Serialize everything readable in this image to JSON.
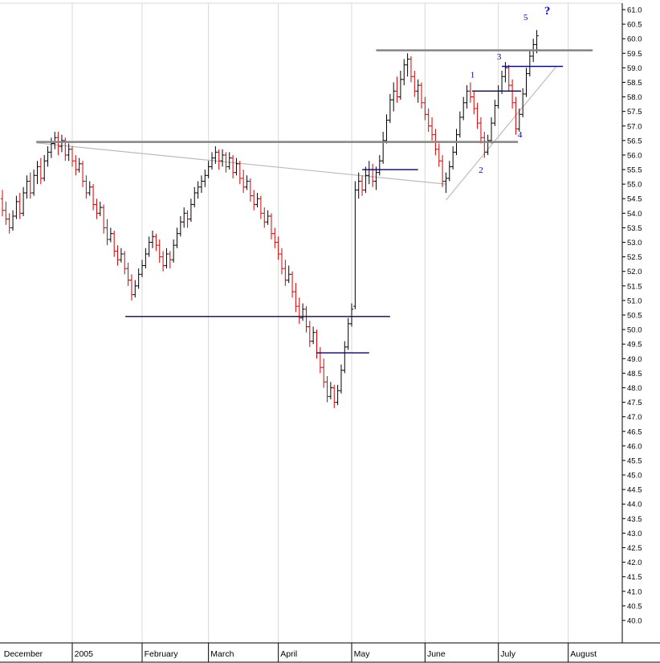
{
  "chart_data": {
    "type": "ohlc-bar",
    "title": "",
    "description": "Daily OHLC price bars, December 2004 through mid-July 2005, with Elliott wave count labels 1-5 and a question mark, gray horizontal resistance lines, converging gray trendlines and navy support/resistance segments",
    "colors": {
      "up": "#000000",
      "down": "#d40000",
      "heavy_line": "#858585",
      "trendline": "#bcbcbc",
      "navy_line": "#00007f",
      "wave_label": "#0000bb",
      "question_mark": "#0000dd",
      "gridline": "#d8d8d8",
      "axis": "#000000"
    },
    "x_axis": {
      "months": [
        {
          "label": "December",
          "gridline_bar": null,
          "label_bar": 0.4
        },
        {
          "label": "2005",
          "gridline_bar": 20,
          "label_bar": 20.6
        },
        {
          "label": "February",
          "gridline_bar": 40,
          "label_bar": 40.6
        },
        {
          "label": "March",
          "gridline_bar": 59,
          "label_bar": 59.6
        },
        {
          "label": "April",
          "gridline_bar": 79,
          "label_bar": 79.6
        },
        {
          "label": "May",
          "gridline_bar": 100,
          "label_bar": 100.6
        },
        {
          "label": "June",
          "gridline_bar": 121,
          "label_bar": 121.6
        },
        {
          "label": "July",
          "gridline_bar": 142,
          "label_bar": 142.6
        },
        {
          "label": "August",
          "gridline_bar": 162,
          "label_bar": 162.6
        }
      ]
    },
    "y_axis": {
      "max": 61.0,
      "min": 40.0,
      "step": 0.5,
      "tick_labels": [
        "61.0",
        "60.5",
        "60.0",
        "59.5",
        "59.0",
        "58.5",
        "58.0",
        "57.5",
        "57.0",
        "56.5",
        "56.0",
        "55.5",
        "55.0",
        "54.5",
        "54.0",
        "53.5",
        "53.0",
        "52.5",
        "52.0",
        "51.5",
        "51.0",
        "50.5",
        "50.0",
        "49.5",
        "49.0",
        "48.5",
        "48.0",
        "47.5",
        "47.0",
        "46.5",
        "46.0",
        "45.5",
        "45.0",
        "44.5",
        "44.0",
        "43.5",
        "43.0",
        "42.5",
        "42.0",
        "41.5",
        "41.0",
        "40.5",
        "40.0"
      ]
    },
    "bars": [
      [
        54.5,
        54.8,
        53.9,
        54.1
      ],
      [
        54.1,
        54.4,
        53.6,
        53.8
      ],
      [
        53.8,
        54.0,
        53.3,
        53.5
      ],
      [
        53.5,
        54.1,
        53.4,
        53.9
      ],
      [
        53.9,
        54.6,
        53.8,
        54.4
      ],
      [
        54.4,
        54.7,
        53.8,
        54.0
      ],
      [
        54.0,
        54.9,
        53.9,
        54.7
      ],
      [
        54.7,
        55.3,
        54.5,
        55.1
      ],
      [
        55.1,
        55.4,
        54.5,
        54.7
      ],
      [
        54.7,
        55.5,
        54.6,
        55.3
      ],
      [
        55.3,
        55.8,
        55.0,
        55.6
      ],
      [
        55.6,
        55.9,
        55.0,
        55.2
      ],
      [
        55.2,
        56.0,
        55.1,
        55.8
      ],
      [
        55.8,
        56.3,
        55.6,
        56.1
      ],
      [
        56.1,
        56.6,
        55.9,
        56.4
      ],
      [
        56.4,
        56.8,
        56.2,
        56.6
      ],
      [
        56.6,
        56.8,
        56.0,
        56.3
      ],
      [
        56.3,
        56.7,
        56.1,
        56.5
      ],
      [
        56.5,
        56.6,
        55.8,
        56.0
      ],
      [
        56.0,
        56.4,
        55.8,
        56.2
      ],
      [
        56.2,
        56.3,
        55.6,
        55.8
      ],
      [
        55.8,
        56.0,
        55.3,
        55.5
      ],
      [
        55.5,
        55.9,
        55.4,
        55.7
      ],
      [
        55.7,
        55.8,
        54.9,
        55.1
      ],
      [
        55.1,
        55.3,
        54.5,
        54.7
      ],
      [
        54.7,
        55.1,
        54.6,
        54.9
      ],
      [
        54.9,
        55.0,
        54.1,
        54.3
      ],
      [
        54.3,
        54.5,
        53.8,
        54.0
      ],
      [
        54.0,
        54.4,
        53.9,
        54.2
      ],
      [
        54.2,
        54.3,
        53.3,
        53.5
      ],
      [
        53.5,
        53.8,
        52.9,
        53.1
      ],
      [
        53.1,
        53.5,
        53.0,
        53.3
      ],
      [
        53.3,
        53.4,
        52.5,
        52.7
      ],
      [
        52.7,
        52.9,
        52.2,
        52.4
      ],
      [
        52.4,
        52.8,
        52.3,
        52.6
      ],
      [
        52.6,
        52.7,
        51.9,
        52.1
      ],
      [
        52.1,
        52.3,
        51.5,
        51.7
      ],
      [
        51.7,
        51.9,
        51.0,
        51.2
      ],
      [
        51.2,
        51.7,
        51.1,
        51.5
      ],
      [
        51.5,
        52.1,
        51.4,
        51.9
      ],
      [
        51.9,
        52.4,
        51.8,
        52.2
      ],
      [
        52.2,
        52.8,
        52.1,
        52.6
      ],
      [
        52.6,
        53.2,
        52.5,
        53.0
      ],
      [
        53.0,
        53.4,
        52.8,
        53.2
      ],
      [
        53.2,
        53.3,
        52.7,
        52.9
      ],
      [
        52.9,
        53.1,
        52.3,
        52.5
      ],
      [
        52.5,
        52.7,
        52.0,
        52.2
      ],
      [
        52.2,
        52.8,
        52.1,
        52.6
      ],
      [
        52.6,
        52.7,
        52.1,
        52.4
      ],
      [
        52.4,
        53.1,
        52.3,
        52.9
      ],
      [
        52.9,
        53.5,
        52.8,
        53.3
      ],
      [
        53.3,
        53.9,
        53.2,
        53.7
      ],
      [
        53.7,
        54.2,
        53.5,
        54.0
      ],
      [
        54.0,
        54.1,
        53.5,
        53.8
      ],
      [
        53.8,
        54.5,
        53.7,
        54.3
      ],
      [
        54.3,
        54.9,
        54.2,
        54.7
      ],
      [
        54.7,
        55.1,
        54.5,
        54.9
      ],
      [
        54.9,
        55.3,
        54.7,
        55.1
      ],
      [
        55.1,
        55.5,
        54.9,
        55.3
      ],
      [
        55.3,
        55.8,
        55.2,
        55.6
      ],
      [
        55.6,
        56.1,
        55.5,
        55.9
      ],
      [
        55.9,
        56.3,
        55.7,
        56.1
      ],
      [
        56.1,
        56.2,
        55.5,
        55.8
      ],
      [
        55.8,
        56.2,
        55.6,
        56.0
      ],
      [
        56.0,
        56.1,
        55.4,
        55.6
      ],
      [
        55.6,
        56.1,
        55.5,
        55.9
      ],
      [
        55.9,
        56.0,
        55.2,
        55.4
      ],
      [
        55.4,
        55.9,
        55.3,
        55.7
      ],
      [
        55.7,
        55.8,
        55.0,
        55.2
      ],
      [
        55.2,
        55.5,
        54.7,
        54.9
      ],
      [
        54.9,
        55.3,
        54.8,
        55.1
      ],
      [
        55.1,
        55.2,
        54.4,
        54.6
      ],
      [
        54.6,
        54.8,
        54.1,
        54.3
      ],
      [
        54.3,
        54.7,
        54.2,
        54.5
      ],
      [
        54.5,
        54.6,
        53.8,
        54.0
      ],
      [
        54.0,
        54.2,
        53.5,
        53.7
      ],
      [
        53.7,
        54.1,
        53.6,
        53.9
      ],
      [
        53.9,
        54.0,
        53.1,
        53.3
      ],
      [
        53.3,
        53.5,
        52.8,
        53.0
      ],
      [
        53.0,
        53.2,
        52.4,
        52.6
      ],
      [
        52.6,
        52.8,
        51.9,
        52.1
      ],
      [
        52.1,
        52.4,
        51.5,
        51.7
      ],
      [
        51.7,
        52.2,
        51.6,
        51.9
      ],
      [
        51.9,
        52.0,
        51.1,
        51.3
      ],
      [
        51.3,
        51.6,
        50.6,
        50.8
      ],
      [
        50.8,
        51.1,
        50.2,
        50.4
      ],
      [
        50.4,
        50.9,
        50.3,
        50.7
      ],
      [
        50.7,
        50.8,
        49.9,
        50.1
      ],
      [
        50.1,
        50.3,
        49.4,
        49.6
      ],
      [
        49.6,
        50.1,
        49.5,
        49.9
      ],
      [
        49.9,
        50.0,
        49.0,
        49.2
      ],
      [
        49.2,
        49.4,
        48.5,
        48.7
      ],
      [
        48.7,
        49.0,
        48.0,
        48.2
      ],
      [
        48.2,
        48.4,
        47.5,
        47.7
      ],
      [
        47.7,
        48.2,
        47.6,
        48.0
      ],
      [
        48.0,
        48.1,
        47.3,
        47.5
      ],
      [
        47.5,
        48.1,
        47.4,
        47.9
      ],
      [
        47.9,
        48.8,
        47.8,
        48.6
      ],
      [
        48.6,
        49.6,
        48.5,
        49.4
      ],
      [
        49.4,
        50.4,
        49.3,
        50.2
      ],
      [
        50.2,
        50.9,
        50.1,
        50.7
      ],
      [
        50.8,
        55.1,
        50.7,
        54.8
      ],
      [
        54.8,
        55.4,
        54.5,
        55.1
      ],
      [
        55.1,
        55.3,
        54.6,
        54.8
      ],
      [
        54.8,
        55.6,
        54.7,
        55.3
      ],
      [
        55.3,
        55.8,
        55.0,
        55.5
      ],
      [
        55.5,
        55.7,
        54.9,
        55.1
      ],
      [
        55.1,
        55.6,
        54.8,
        55.4
      ],
      [
        55.4,
        56.0,
        55.3,
        55.8
      ],
      [
        55.8,
        56.8,
        55.7,
        56.5
      ],
      [
        56.5,
        57.4,
        56.4,
        57.2
      ],
      [
        57.2,
        58.1,
        57.1,
        57.9
      ],
      [
        57.9,
        58.5,
        57.5,
        58.2
      ],
      [
        58.2,
        58.7,
        57.8,
        58.0
      ],
      [
        58.0,
        58.9,
        57.9,
        58.6
      ],
      [
        58.6,
        59.3,
        58.4,
        59.1
      ],
      [
        59.1,
        59.5,
        58.7,
        59.3
      ],
      [
        59.3,
        59.4,
        58.5,
        58.7
      ],
      [
        58.7,
        58.9,
        58.0,
        58.2
      ],
      [
        58.2,
        58.6,
        57.8,
        58.4
      ],
      [
        58.4,
        58.5,
        57.6,
        57.8
      ],
      [
        57.8,
        58.0,
        57.2,
        57.4
      ],
      [
        57.4,
        57.6,
        56.8,
        57.0
      ],
      [
        57.0,
        57.3,
        56.5,
        56.7
      ],
      [
        56.7,
        56.9,
        56.0,
        56.2
      ],
      [
        56.2,
        56.4,
        55.6,
        55.8
      ],
      [
        55.8,
        56.0,
        54.9,
        55.1
      ],
      [
        55.1,
        55.4,
        54.7,
        55.2
      ],
      [
        55.2,
        55.8,
        55.1,
        55.6
      ],
      [
        55.6,
        56.3,
        55.5,
        56.1
      ],
      [
        56.1,
        56.9,
        56.0,
        56.7
      ],
      [
        56.7,
        57.5,
        56.6,
        57.3
      ],
      [
        57.3,
        58.0,
        57.2,
        57.8
      ],
      [
        57.8,
        58.4,
        57.6,
        58.2
      ],
      [
        58.2,
        58.5,
        57.8,
        58.0
      ],
      [
        58.0,
        58.2,
        57.4,
        57.6
      ],
      [
        57.6,
        57.8,
        56.9,
        57.1
      ],
      [
        57.1,
        57.3,
        56.4,
        56.6
      ],
      [
        56.6,
        56.8,
        55.9,
        56.1
      ],
      [
        56.1,
        56.7,
        56.0,
        56.5
      ],
      [
        56.5,
        57.3,
        56.4,
        57.1
      ],
      [
        57.1,
        57.9,
        57.0,
        57.7
      ],
      [
        57.7,
        58.4,
        57.6,
        58.2
      ],
      [
        58.2,
        58.9,
        58.1,
        58.7
      ],
      [
        58.7,
        59.2,
        58.5,
        59.0
      ],
      [
        59.0,
        59.1,
        58.2,
        58.4
      ],
      [
        58.4,
        58.6,
        57.6,
        57.8
      ],
      [
        57.8,
        58.0,
        56.7,
        56.9
      ],
      [
        56.9,
        57.6,
        56.8,
        57.4
      ],
      [
        57.4,
        58.3,
        57.3,
        58.1
      ],
      [
        58.1,
        59.0,
        58.0,
        58.8
      ],
      [
        58.8,
        59.6,
        58.7,
        59.4
      ],
      [
        59.4,
        60.0,
        59.2,
        59.8
      ],
      [
        59.8,
        60.3,
        59.5,
        60.1
      ]
    ],
    "overlays": {
      "horizontal_lines": [
        {
          "price": 59.6,
          "from_bar": 107,
          "to_bar": 169,
          "style": "heavy"
        },
        {
          "price": 56.45,
          "from_bar": 9.7,
          "to_bar": 147.6,
          "style": "heavy"
        },
        {
          "price": 55.5,
          "from_bar": 103,
          "to_bar": 119,
          "style": "navy"
        },
        {
          "price": 50.45,
          "from_bar": 35.2,
          "to_bar": 111,
          "style": "navy"
        },
        {
          "price": 49.2,
          "from_bar": 89.9,
          "to_bar": 105,
          "style": "navy"
        },
        {
          "price": 58.2,
          "from_bar": 134.5,
          "to_bar": 148.5,
          "style": "navy"
        },
        {
          "price": 59.05,
          "from_bar": 143,
          "to_bar": 160.5,
          "style": "navy"
        }
      ],
      "trendlines": [
        {
          "from_bar": 9.7,
          "from_price": 56.42,
          "to_bar": 127,
          "to_price": 55.0
        },
        {
          "from_bar": 127,
          "from_price": 54.45,
          "to_bar": 158.6,
          "to_price": 59.05
        }
      ],
      "wave_labels": [
        {
          "text": "1",
          "bar": 134.6,
          "price": 58.78
        },
        {
          "text": "2",
          "bar": 137.0,
          "price": 55.5
        },
        {
          "text": "3",
          "bar": 142.2,
          "price": 59.4
        },
        {
          "text": "4",
          "bar": 148.2,
          "price": 56.72
        },
        {
          "text": "5",
          "bar": 149.8,
          "price": 60.75
        },
        {
          "text": "?",
          "bar": 156.0,
          "price": 60.95,
          "emphasis": true
        }
      ]
    }
  }
}
